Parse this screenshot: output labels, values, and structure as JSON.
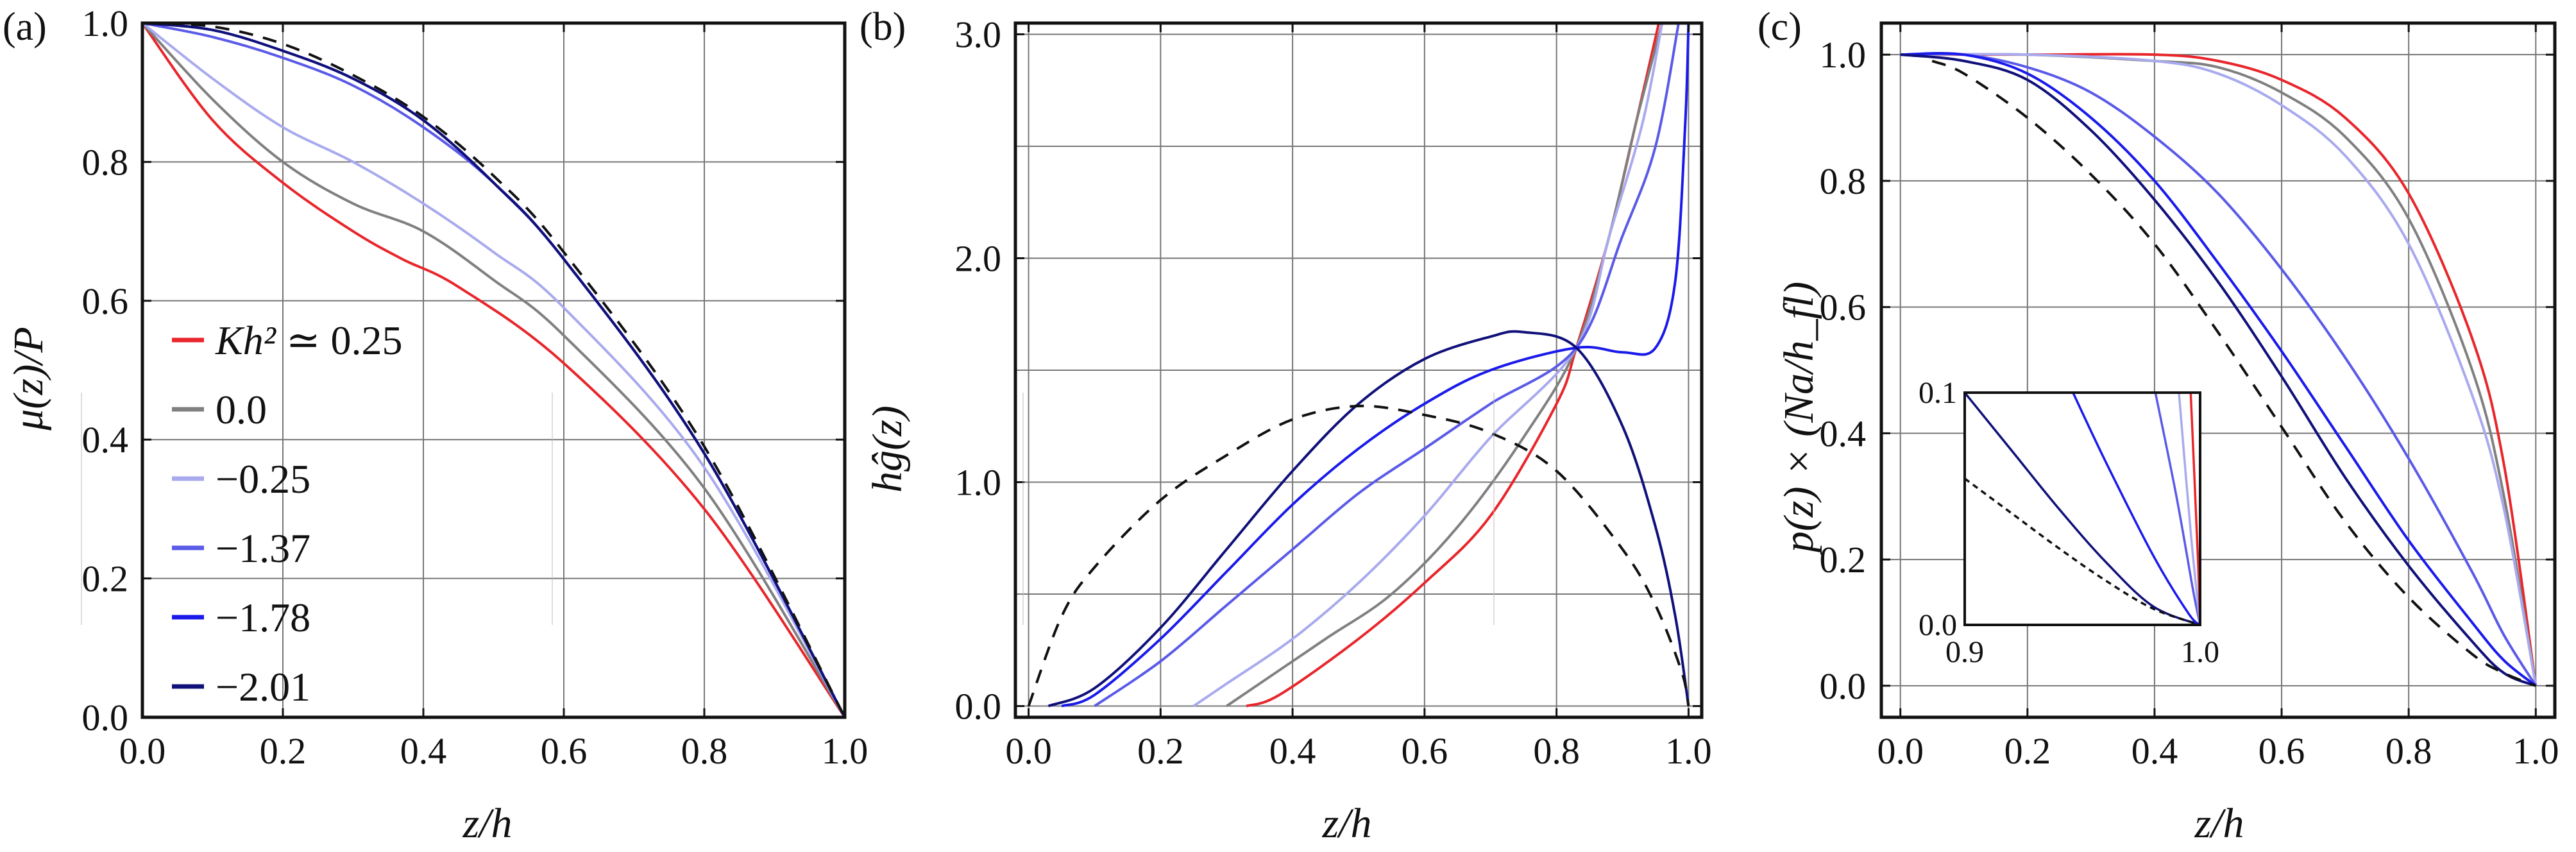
{
  "panels": [
    {
      "tag": "(a)",
      "xlabel": "z/h",
      "ylabel": "μ(z)/P"
    },
    {
      "tag": "(b)",
      "xlabel": "z/h",
      "ylabel": "hĝ(z)"
    },
    {
      "tag": "(c)",
      "xlabel": "z/h",
      "ylabel": "p(z) × (Na/h_fl)"
    }
  ],
  "legend": {
    "title_prefix": "Kh² ≃",
    "entries": [
      "0.25",
      "0.0",
      "−0.25",
      "−1.37",
      "−1.78",
      "−2.01"
    ]
  },
  "chart_data": [
    {
      "type": "line",
      "title": "(a)",
      "xlabel": "z/h",
      "ylabel": "μ(z)/P",
      "xlim": [
        0,
        1
      ],
      "ylim": [
        0,
        1
      ],
      "grid": true,
      "legend_position": "left",
      "xticks": [
        "0.0",
        "0.2",
        "0.4",
        "0.6",
        "0.8",
        "1.0"
      ],
      "yticks": [
        "0.0",
        "0.2",
        "0.4",
        "0.6",
        "0.8",
        "1.0"
      ],
      "series": [
        {
          "name": "Kh² ≃ 0.25",
          "color": "#e8262b",
          "dash": "solid",
          "x": [
            0,
            0.1,
            0.2,
            0.3,
            0.37,
            0.45,
            0.6,
            0.8,
            1.0
          ],
          "y": [
            1.0,
            0.86,
            0.77,
            0.7,
            0.66,
            0.62,
            0.51,
            0.3,
            0.0
          ]
        },
        {
          "name": "0.0",
          "color": "#808080",
          "dash": "solid",
          "x": [
            0,
            0.1,
            0.2,
            0.3,
            0.4,
            0.5,
            0.6,
            0.8,
            1.0
          ],
          "y": [
            1.0,
            0.89,
            0.8,
            0.74,
            0.7,
            0.63,
            0.55,
            0.33,
            0.0
          ]
        },
        {
          "name": "−0.25",
          "color": "#a9aaee",
          "dash": "solid",
          "x": [
            0,
            0.1,
            0.2,
            0.3,
            0.4,
            0.5,
            0.6,
            0.8,
            1.0
          ],
          "y": [
            1.0,
            0.92,
            0.85,
            0.8,
            0.74,
            0.67,
            0.59,
            0.36,
            0.0
          ]
        },
        {
          "name": "−1.37",
          "color": "#5a5ae8",
          "dash": "solid",
          "x": [
            0,
            0.1,
            0.2,
            0.3,
            0.4,
            0.5,
            0.6,
            0.8,
            1.0
          ],
          "y": [
            1.0,
            0.98,
            0.95,
            0.91,
            0.85,
            0.77,
            0.66,
            0.38,
            0.0
          ]
        },
        {
          "name": "−1.78",
          "color": "#1a1aeb",
          "dash": "solid",
          "x": [
            0,
            0.1,
            0.2,
            0.3,
            0.4,
            0.5,
            0.6,
            0.8,
            1.0
          ],
          "y": [
            1.0,
            0.99,
            0.96,
            0.92,
            0.86,
            0.77,
            0.66,
            0.38,
            0.0
          ]
        },
        {
          "name": "−2.01",
          "color": "#10107a",
          "dash": "solid",
          "x": [
            0,
            0.1,
            0.2,
            0.3,
            0.4,
            0.5,
            0.6,
            0.8,
            1.0
          ],
          "y": [
            1.0,
            0.99,
            0.96,
            0.92,
            0.86,
            0.77,
            0.66,
            0.38,
            0.0
          ]
        },
        {
          "name": "",
          "color": "#111111",
          "dash": "dashed",
          "x": [
            0,
            0.1,
            0.2,
            0.3,
            0.4,
            0.5,
            0.6,
            0.8,
            1.0
          ],
          "y": [
            1.0,
            0.995,
            0.97,
            0.925,
            0.865,
            0.78,
            0.67,
            0.39,
            0.0
          ]
        }
      ]
    },
    {
      "type": "line",
      "title": "(b)",
      "xlabel": "z/h",
      "ylabel": "hĝ(z)",
      "xlim": [
        -0.02,
        1.02
      ],
      "ylim": [
        -0.05,
        3.05
      ],
      "grid": true,
      "xticks": [
        "0.0",
        "0.2",
        "0.4",
        "0.6",
        "0.8",
        "1.0"
      ],
      "yticks": [
        "0.0",
        "1.0",
        "2.0",
        "3.0"
      ],
      "series": [
        {
          "name": "Kh² ≃ 0.25",
          "color": "#e8262b",
          "dash": "solid",
          "x": [
            0.33,
            0.38,
            0.5,
            0.6,
            0.7,
            0.8,
            0.83,
            0.88,
            0.92,
            0.955
          ],
          "y": [
            0,
            0.05,
            0.3,
            0.55,
            0.85,
            1.35,
            1.6,
            2.1,
            2.6,
            3.05
          ]
        },
        {
          "name": "0.0",
          "color": "#808080",
          "dash": "solid",
          "x": [
            0.3,
            0.35,
            0.45,
            0.55,
            0.65,
            0.75,
            0.83,
            0.88,
            0.92,
            0.96
          ],
          "y": [
            0,
            0.1,
            0.3,
            0.5,
            0.8,
            1.2,
            1.6,
            2.1,
            2.6,
            3.05
          ]
        },
        {
          "name": "−0.25",
          "color": "#a9aaee",
          "dash": "solid",
          "x": [
            0.25,
            0.3,
            0.4,
            0.5,
            0.6,
            0.7,
            0.83,
            0.88,
            0.93,
            0.96
          ],
          "y": [
            0,
            0.1,
            0.3,
            0.55,
            0.85,
            1.2,
            1.6,
            2.1,
            2.6,
            3.05
          ]
        },
        {
          "name": "−1.37",
          "color": "#5a5ae8",
          "dash": "solid",
          "x": [
            0.1,
            0.2,
            0.3,
            0.4,
            0.5,
            0.6,
            0.7,
            0.83,
            0.9,
            0.95,
            0.985
          ],
          "y": [
            0,
            0.2,
            0.45,
            0.7,
            0.95,
            1.15,
            1.35,
            1.6,
            2.1,
            2.5,
            3.05
          ]
        },
        {
          "name": "−1.78",
          "color": "#1a1aeb",
          "dash": "solid",
          "x": [
            0.05,
            0.1,
            0.2,
            0.3,
            0.4,
            0.5,
            0.6,
            0.7,
            0.83,
            0.9,
            0.95,
            0.98,
            0.995,
            1.0
          ],
          "y": [
            0,
            0.05,
            0.3,
            0.6,
            0.9,
            1.15,
            1.35,
            1.5,
            1.6,
            1.58,
            1.6,
            1.9,
            2.6,
            3.05
          ]
        },
        {
          "name": "−2.01",
          "color": "#10107a",
          "dash": "solid",
          "x": [
            0.03,
            0.1,
            0.2,
            0.3,
            0.4,
            0.5,
            0.6,
            0.7,
            0.75,
            0.83,
            0.9,
            0.95,
            0.98,
            1.0
          ],
          "y": [
            0,
            0.08,
            0.35,
            0.7,
            1.05,
            1.35,
            1.55,
            1.65,
            1.67,
            1.6,
            1.25,
            0.8,
            0.4,
            0.0
          ]
        },
        {
          "name": "",
          "color": "#111111",
          "dash": "dashed",
          "x": [
            0,
            0.05,
            0.1,
            0.2,
            0.3,
            0.4,
            0.5,
            0.6,
            0.7,
            0.8,
            0.9,
            0.95,
            0.99,
            1.0
          ],
          "y": [
            0,
            0.4,
            0.62,
            0.92,
            1.12,
            1.28,
            1.34,
            1.3,
            1.22,
            1.05,
            0.7,
            0.45,
            0.15,
            0.0
          ]
        }
      ]
    },
    {
      "type": "line",
      "title": "(c)",
      "xlabel": "z/h",
      "ylabel": "p(z) × (Na/h_fl)",
      "xlim": [
        -0.03,
        1.03
      ],
      "ylim": [
        -0.05,
        1.05
      ],
      "grid": true,
      "xticks": [
        "0.0",
        "0.2",
        "0.4",
        "0.6",
        "0.8",
        "1.0"
      ],
      "yticks": [
        "0.0",
        "0.2",
        "0.4",
        "0.6",
        "0.8",
        "1.0"
      ],
      "series": [
        {
          "name": "Kh² ≃ 0.25",
          "color": "#e8262b",
          "dash": "solid",
          "x": [
            0,
            0.2,
            0.4,
            0.5,
            0.6,
            0.7,
            0.8,
            0.9,
            0.95,
            1.0
          ],
          "y": [
            1.0,
            1.0,
            1.0,
            0.99,
            0.96,
            0.9,
            0.78,
            0.55,
            0.35,
            0.0
          ]
        },
        {
          "name": "0.0",
          "color": "#808080",
          "dash": "solid",
          "x": [
            0,
            0.2,
            0.4,
            0.5,
            0.6,
            0.7,
            0.8,
            0.9,
            0.95,
            1.0
          ],
          "y": [
            1.0,
            1.0,
            0.99,
            0.98,
            0.94,
            0.87,
            0.74,
            0.5,
            0.3,
            0.0
          ]
        },
        {
          "name": "−0.25",
          "color": "#a9aaee",
          "dash": "solid",
          "x": [
            0,
            0.2,
            0.4,
            0.5,
            0.6,
            0.7,
            0.8,
            0.9,
            0.95,
            1.0
          ],
          "y": [
            1.0,
            1.0,
            0.99,
            0.97,
            0.92,
            0.84,
            0.7,
            0.46,
            0.28,
            0.0
          ]
        },
        {
          "name": "−1.37",
          "color": "#5a5ae8",
          "dash": "solid",
          "x": [
            0,
            0.1,
            0.2,
            0.3,
            0.4,
            0.5,
            0.6,
            0.7,
            0.8,
            0.9,
            0.95,
            1.0
          ],
          "y": [
            1.0,
            1.0,
            0.98,
            0.94,
            0.87,
            0.78,
            0.66,
            0.52,
            0.36,
            0.18,
            0.08,
            0.0
          ]
        },
        {
          "name": "−1.78",
          "color": "#1a1aeb",
          "dash": "solid",
          "x": [
            0,
            0.1,
            0.2,
            0.3,
            0.4,
            0.5,
            0.6,
            0.7,
            0.8,
            0.9,
            0.95,
            1.0
          ],
          "y": [
            1.0,
            1.0,
            0.97,
            0.9,
            0.8,
            0.67,
            0.53,
            0.38,
            0.23,
            0.1,
            0.04,
            0.0
          ]
        },
        {
          "name": "−2.01",
          "color": "#10107a",
          "dash": "solid",
          "x": [
            0,
            0.1,
            0.2,
            0.3,
            0.4,
            0.5,
            0.6,
            0.7,
            0.8,
            0.9,
            0.95,
            1.0
          ],
          "y": [
            1.0,
            0.99,
            0.96,
            0.88,
            0.77,
            0.64,
            0.49,
            0.33,
            0.19,
            0.07,
            0.02,
            0.0
          ]
        },
        {
          "name": "",
          "color": "#111111",
          "dash": "dashed",
          "x": [
            0.05,
            0.1,
            0.2,
            0.3,
            0.4,
            0.5,
            0.6,
            0.7,
            0.8,
            0.9,
            0.95,
            1.0
          ],
          "y": [
            0.99,
            0.97,
            0.9,
            0.81,
            0.7,
            0.56,
            0.41,
            0.26,
            0.14,
            0.05,
            0.02,
            0.0
          ]
        }
      ],
      "inset": {
        "xlim": [
          0.9,
          1.0
        ],
        "ylim": [
          0.0,
          0.1
        ],
        "xticks": [
          "0.9",
          "1.0"
        ],
        "yticks": [
          "0.0",
          "0.1"
        ],
        "series": [
          {
            "color": "#10107a",
            "dash": "solid",
            "x": [
              0.9,
              0.92,
              0.94,
              0.96,
              0.98,
              1.0
            ],
            "y": [
              0.1,
              0.075,
              0.05,
              0.027,
              0.008,
              0.0
            ]
          },
          {
            "color": "#111111",
            "dash": "dashed",
            "x": [
              0.9,
              0.92,
              0.94,
              0.96,
              0.98,
              1.0
            ],
            "y": [
              0.063,
              0.048,
              0.033,
              0.019,
              0.007,
              0.0
            ]
          },
          {
            "color": "#1a1aeb",
            "dash": "solid",
            "x": [
              0.946,
              0.96,
              0.98,
              0.995,
              1.0
            ],
            "y": [
              0.1,
              0.07,
              0.03,
              0.005,
              0.0
            ]
          },
          {
            "color": "#5a5ae8",
            "dash": "solid",
            "x": [
              0.981,
              0.99,
              0.997,
              1.0
            ],
            "y": [
              0.1,
              0.055,
              0.015,
              0.0
            ]
          },
          {
            "color": "#a9aaee",
            "dash": "solid",
            "x": [
              0.991,
              0.996,
              1.0
            ],
            "y": [
              0.1,
              0.04,
              0.0
            ]
          },
          {
            "color": "#e8262b",
            "dash": "solid",
            "x": [
              0.996,
              0.999,
              1.0
            ],
            "y": [
              0.1,
              0.03,
              0.0
            ]
          }
        ]
      }
    }
  ]
}
